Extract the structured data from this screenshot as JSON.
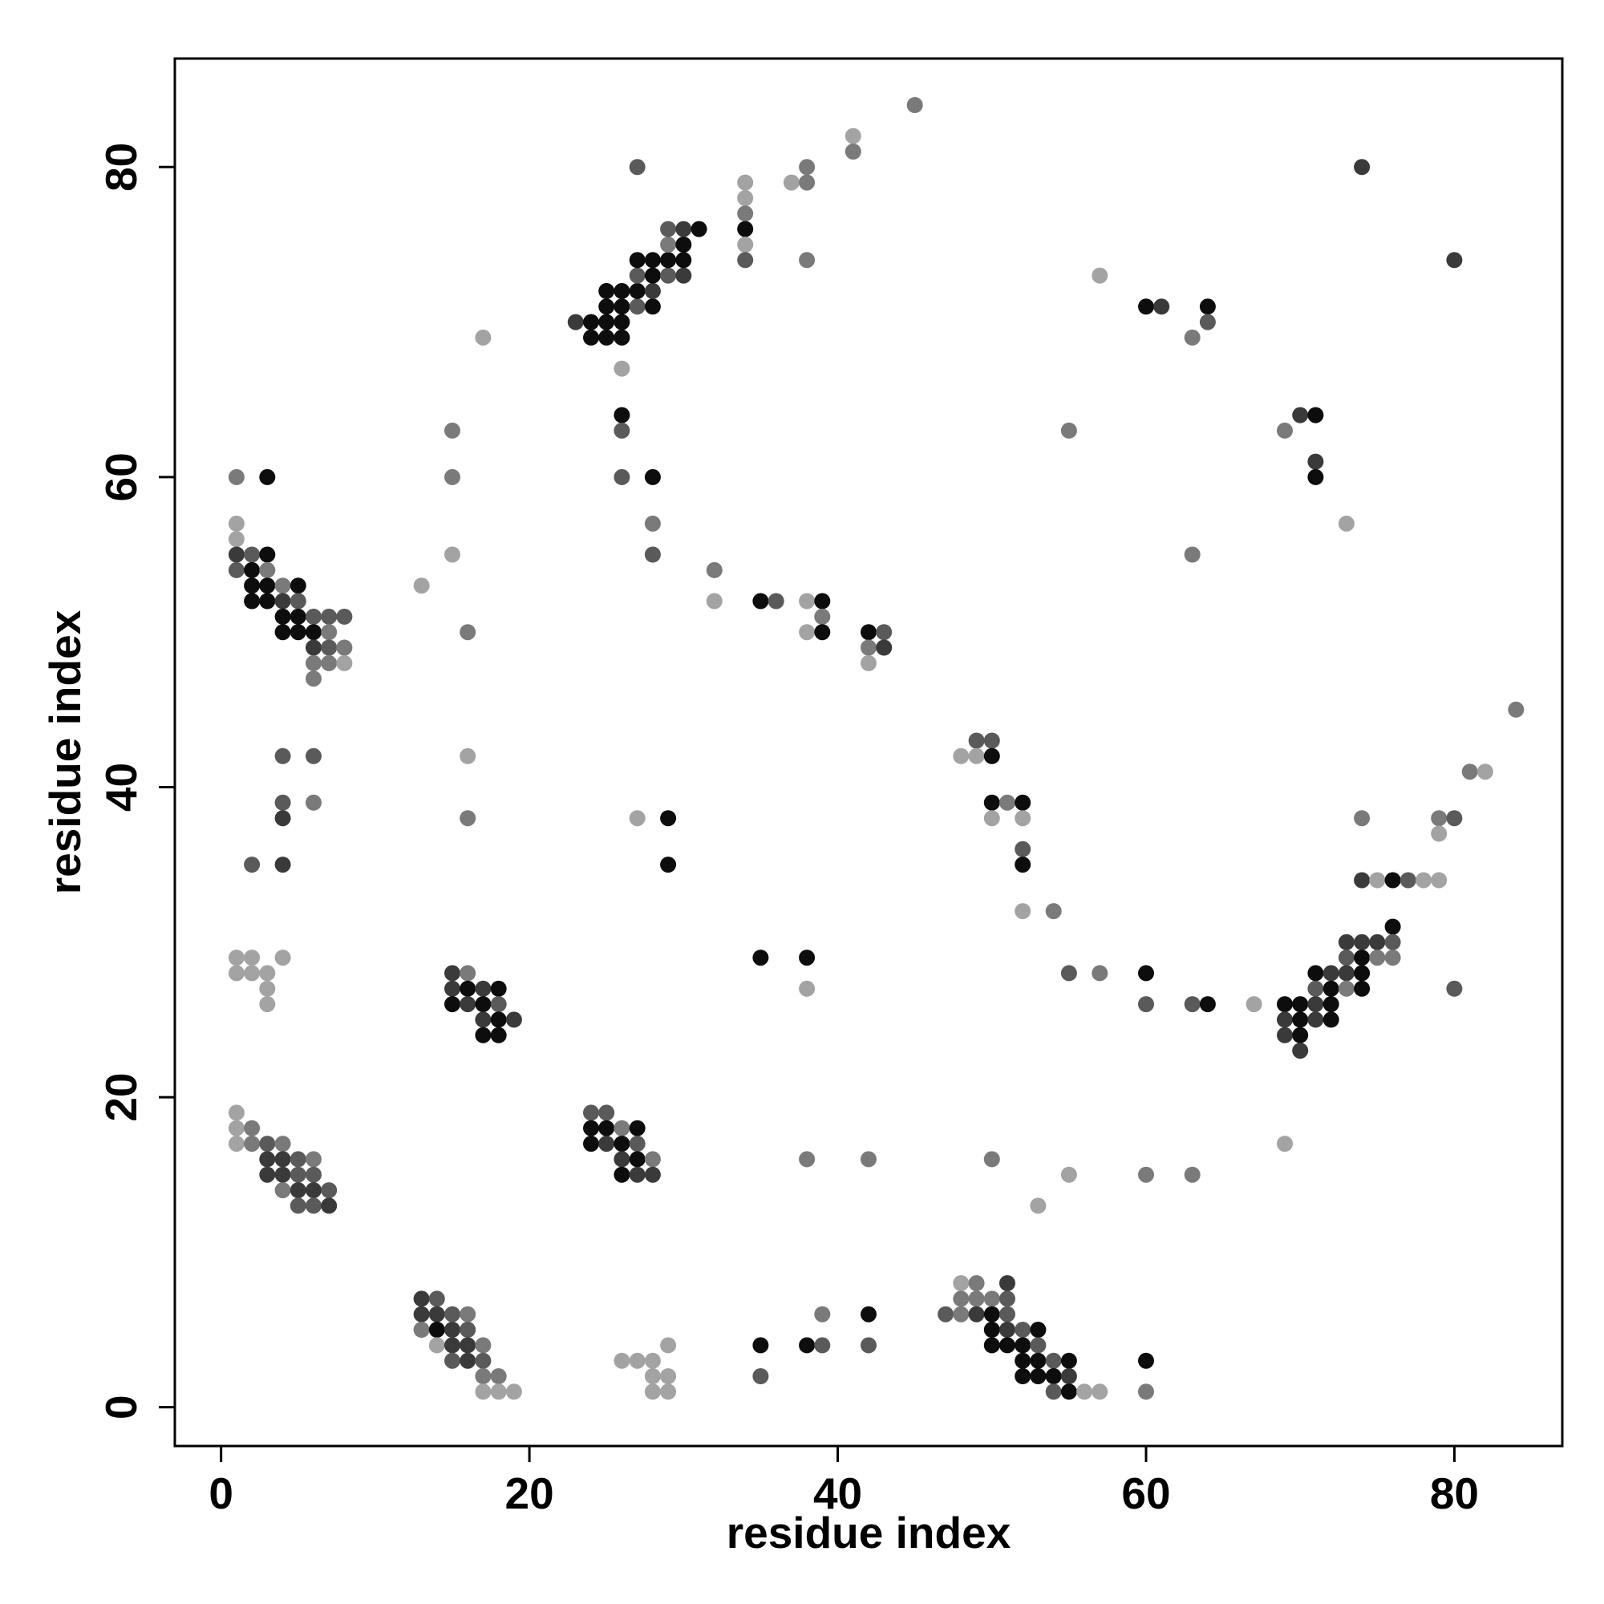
{
  "chart_data": {
    "type": "scatter",
    "title": "",
    "xlabel": "residue index",
    "ylabel": "residue index",
    "xlim": [
      -3,
      87
    ],
    "ylim": [
      -2.5,
      87
    ],
    "xticks": [
      0,
      20,
      40,
      60,
      80
    ],
    "yticks": [
      0,
      20,
      40,
      60,
      80
    ],
    "grid": false,
    "legend": "none",
    "color_levels": {
      "1": "#0d0d0d",
      "2": "#3a3a3a",
      "3": "#5a5a5a",
      "4": "#7a7a7a",
      "5": "#a3a3a3"
    },
    "points": [
      [
        1,
        60,
        4
      ],
      [
        3,
        60,
        1
      ],
      [
        1,
        57,
        5
      ],
      [
        1,
        56,
        5
      ],
      [
        1,
        55,
        2
      ],
      [
        2,
        55,
        3
      ],
      [
        3,
        55,
        1
      ],
      [
        1,
        54,
        3
      ],
      [
        2,
        54,
        1
      ],
      [
        3,
        54,
        4
      ],
      [
        2,
        53,
        1
      ],
      [
        3,
        53,
        1
      ],
      [
        4,
        53,
        4
      ],
      [
        5,
        53,
        1
      ],
      [
        2,
        52,
        1
      ],
      [
        3,
        52,
        1
      ],
      [
        4,
        52,
        2
      ],
      [
        5,
        52,
        3
      ],
      [
        4,
        51,
        1
      ],
      [
        5,
        51,
        1
      ],
      [
        6,
        51,
        3
      ],
      [
        7,
        51,
        3
      ],
      [
        8,
        51,
        3
      ],
      [
        4,
        50,
        1
      ],
      [
        5,
        50,
        1
      ],
      [
        6,
        50,
        1
      ],
      [
        7,
        50,
        4
      ],
      [
        6,
        49,
        2
      ],
      [
        7,
        49,
        3
      ],
      [
        8,
        49,
        4
      ],
      [
        6,
        48,
        4
      ],
      [
        7,
        48,
        4
      ],
      [
        8,
        48,
        5
      ],
      [
        6,
        47,
        4
      ],
      [
        4,
        42,
        3
      ],
      [
        6,
        42,
        3
      ],
      [
        4,
        39,
        3
      ],
      [
        6,
        39,
        4
      ],
      [
        4,
        38,
        2
      ],
      [
        2,
        35,
        3
      ],
      [
        4,
        35,
        2
      ],
      [
        1,
        29,
        5
      ],
      [
        2,
        29,
        5
      ],
      [
        4,
        29,
        5
      ],
      [
        1,
        28,
        5
      ],
      [
        2,
        28,
        5
      ],
      [
        3,
        28,
        5
      ],
      [
        3,
        27,
        5
      ],
      [
        3,
        26,
        5
      ],
      [
        1,
        19,
        5
      ],
      [
        1,
        18,
        5
      ],
      [
        2,
        18,
        4
      ],
      [
        1,
        17,
        5
      ],
      [
        2,
        17,
        4
      ],
      [
        3,
        17,
        3
      ],
      [
        4,
        17,
        4
      ],
      [
        3,
        16,
        2
      ],
      [
        4,
        16,
        2
      ],
      [
        5,
        16,
        3
      ],
      [
        6,
        16,
        4
      ],
      [
        3,
        15,
        2
      ],
      [
        4,
        15,
        2
      ],
      [
        5,
        15,
        3
      ],
      [
        6,
        15,
        3
      ],
      [
        4,
        14,
        4
      ],
      [
        5,
        14,
        2
      ],
      [
        6,
        14,
        2
      ],
      [
        7,
        14,
        3
      ],
      [
        5,
        13,
        3
      ],
      [
        6,
        13,
        3
      ],
      [
        7,
        13,
        2
      ],
      [
        15,
        63,
        4
      ],
      [
        15,
        60,
        4
      ],
      [
        15,
        55,
        5
      ],
      [
        16,
        50,
        4
      ],
      [
        13,
        53,
        5
      ],
      [
        16,
        42,
        5
      ],
      [
        16,
        38,
        4
      ],
      [
        17,
        69,
        5
      ],
      [
        15,
        28,
        2
      ],
      [
        16,
        28,
        4
      ],
      [
        15,
        27,
        2
      ],
      [
        16,
        27,
        1
      ],
      [
        17,
        27,
        2
      ],
      [
        18,
        27,
        1
      ],
      [
        15,
        26,
        1
      ],
      [
        16,
        26,
        2
      ],
      [
        17,
        26,
        1
      ],
      [
        18,
        26,
        3
      ],
      [
        17,
        25,
        2
      ],
      [
        18,
        25,
        1
      ],
      [
        19,
        25,
        2
      ],
      [
        17,
        24,
        1
      ],
      [
        18,
        24,
        1
      ],
      [
        13,
        7,
        2
      ],
      [
        14,
        7,
        3
      ],
      [
        13,
        6,
        2
      ],
      [
        14,
        6,
        2
      ],
      [
        15,
        6,
        3
      ],
      [
        16,
        6,
        4
      ],
      [
        13,
        5,
        4
      ],
      [
        14,
        5,
        1
      ],
      [
        15,
        5,
        2
      ],
      [
        16,
        5,
        3
      ],
      [
        14,
        4,
        5
      ],
      [
        15,
        4,
        2
      ],
      [
        16,
        4,
        2
      ],
      [
        17,
        4,
        4
      ],
      [
        15,
        3,
        3
      ],
      [
        16,
        3,
        2
      ],
      [
        17,
        3,
        3
      ],
      [
        17,
        2,
        4
      ],
      [
        18,
        2,
        4
      ],
      [
        17,
        1,
        5
      ],
      [
        18,
        1,
        5
      ],
      [
        19,
        1,
        5
      ],
      [
        23,
        70,
        2
      ],
      [
        24,
        70,
        1
      ],
      [
        25,
        70,
        1
      ],
      [
        26,
        70,
        1
      ],
      [
        24,
        69,
        1
      ],
      [
        25,
        69,
        1
      ],
      [
        26,
        69,
        1
      ],
      [
        25,
        71,
        1
      ],
      [
        26,
        71,
        1
      ],
      [
        27,
        71,
        3
      ],
      [
        28,
        71,
        1
      ],
      [
        25,
        72,
        1
      ],
      [
        26,
        72,
        1
      ],
      [
        27,
        72,
        1
      ],
      [
        28,
        72,
        2
      ],
      [
        27,
        73,
        3
      ],
      [
        28,
        73,
        1
      ],
      [
        29,
        73,
        3
      ],
      [
        30,
        73,
        2
      ],
      [
        27,
        74,
        1
      ],
      [
        28,
        74,
        1
      ],
      [
        29,
        74,
        1
      ],
      [
        30,
        74,
        1
      ],
      [
        29,
        75,
        4
      ],
      [
        30,
        75,
        1
      ],
      [
        29,
        76,
        3
      ],
      [
        30,
        76,
        2
      ],
      [
        31,
        76,
        1
      ],
      [
        26,
        67,
        5
      ],
      [
        26,
        64,
        1
      ],
      [
        26,
        63,
        3
      ],
      [
        26,
        60,
        3
      ],
      [
        28,
        60,
        1
      ],
      [
        28,
        57,
        4
      ],
      [
        28,
        55,
        3
      ],
      [
        27,
        80,
        3
      ],
      [
        32,
        54,
        4
      ],
      [
        32,
        52,
        5
      ],
      [
        29,
        38,
        1
      ],
      [
        27,
        38,
        5
      ],
      [
        29,
        35,
        1
      ],
      [
        24,
        19,
        3
      ],
      [
        25,
        19,
        3
      ],
      [
        24,
        18,
        1
      ],
      [
        25,
        18,
        1
      ],
      [
        26,
        18,
        4
      ],
      [
        27,
        18,
        1
      ],
      [
        24,
        17,
        1
      ],
      [
        25,
        17,
        2
      ],
      [
        26,
        17,
        1
      ],
      [
        27,
        17,
        3
      ],
      [
        26,
        16,
        2
      ],
      [
        27,
        16,
        1
      ],
      [
        28,
        16,
        4
      ],
      [
        26,
        15,
        1
      ],
      [
        27,
        15,
        2
      ],
      [
        28,
        15,
        2
      ],
      [
        26,
        3,
        5
      ],
      [
        27,
        3,
        5
      ],
      [
        28,
        3,
        5
      ],
      [
        29,
        4,
        5
      ],
      [
        28,
        2,
        5
      ],
      [
        29,
        2,
        5
      ],
      [
        28,
        1,
        5
      ],
      [
        29,
        1,
        5
      ],
      [
        34,
        79,
        5
      ],
      [
        34,
        78,
        5
      ],
      [
        34,
        77,
        4
      ],
      [
        34,
        76,
        1
      ],
      [
        34,
        75,
        5
      ],
      [
        34,
        74,
        3
      ],
      [
        37,
        79,
        5
      ],
      [
        38,
        79,
        4
      ],
      [
        38,
        80,
        4
      ],
      [
        38,
        74,
        4
      ],
      [
        41,
        82,
        5
      ],
      [
        41,
        81,
        4
      ],
      [
        45,
        84,
        4
      ],
      [
        35,
        52,
        1
      ],
      [
        36,
        52,
        3
      ],
      [
        38,
        52,
        5
      ],
      [
        39,
        52,
        1
      ],
      [
        39,
        51,
        4
      ],
      [
        38,
        50,
        5
      ],
      [
        39,
        50,
        1
      ],
      [
        42,
        50,
        1
      ],
      [
        43,
        50,
        3
      ],
      [
        42,
        49,
        4
      ],
      [
        43,
        49,
        2
      ],
      [
        42,
        48,
        5
      ],
      [
        35,
        29,
        1
      ],
      [
        38,
        29,
        1
      ],
      [
        38,
        27,
        5
      ],
      [
        38,
        16,
        4
      ],
      [
        42,
        16,
        4
      ],
      [
        35,
        4,
        1
      ],
      [
        38,
        4,
        1
      ],
      [
        39,
        4,
        3
      ],
      [
        42,
        4,
        3
      ],
      [
        35,
        2,
        3
      ],
      [
        39,
        6,
        4
      ],
      [
        42,
        6,
        1
      ],
      [
        49,
        43,
        3
      ],
      [
        50,
        43,
        3
      ],
      [
        48,
        42,
        5
      ],
      [
        49,
        42,
        5
      ],
      [
        50,
        42,
        1
      ],
      [
        50,
        39,
        1
      ],
      [
        51,
        39,
        4
      ],
      [
        52,
        39,
        1
      ],
      [
        50,
        38,
        5
      ],
      [
        52,
        38,
        5
      ],
      [
        52,
        36,
        3
      ],
      [
        52,
        35,
        1
      ],
      [
        52,
        32,
        5
      ],
      [
        54,
        32,
        4
      ],
      [
        55,
        28,
        3
      ],
      [
        57,
        28,
        4
      ],
      [
        60,
        28,
        1
      ],
      [
        60,
        26,
        3
      ],
      [
        63,
        26,
        3
      ],
      [
        64,
        26,
        1
      ],
      [
        67,
        26,
        5
      ],
      [
        55,
        63,
        4
      ],
      [
        57,
        73,
        5
      ],
      [
        60,
        71,
        1
      ],
      [
        61,
        71,
        2
      ],
      [
        64,
        71,
        1
      ],
      [
        64,
        70,
        3
      ],
      [
        63,
        69,
        4
      ],
      [
        63,
        55,
        4
      ],
      [
        50,
        16,
        4
      ],
      [
        53,
        13,
        5
      ],
      [
        55,
        15,
        5
      ],
      [
        60,
        15,
        4
      ],
      [
        63,
        15,
        4
      ],
      [
        48,
        8,
        5
      ],
      [
        49,
        8,
        4
      ],
      [
        51,
        8,
        2
      ],
      [
        48,
        7,
        4
      ],
      [
        49,
        7,
        4
      ],
      [
        50,
        7,
        4
      ],
      [
        51,
        7,
        3
      ],
      [
        47,
        6,
        3
      ],
      [
        48,
        6,
        4
      ],
      [
        49,
        6,
        2
      ],
      [
        50,
        6,
        1
      ],
      [
        51,
        6,
        3
      ],
      [
        50,
        5,
        1
      ],
      [
        51,
        5,
        2
      ],
      [
        52,
        5,
        3
      ],
      [
        53,
        5,
        1
      ],
      [
        50,
        4,
        1
      ],
      [
        51,
        4,
        1
      ],
      [
        52,
        4,
        1
      ],
      [
        53,
        4,
        3
      ],
      [
        52,
        3,
        1
      ],
      [
        53,
        3,
        1
      ],
      [
        54,
        3,
        3
      ],
      [
        55,
        3,
        1
      ],
      [
        52,
        2,
        1
      ],
      [
        53,
        2,
        1
      ],
      [
        54,
        2,
        1
      ],
      [
        55,
        2,
        2
      ],
      [
        54,
        1,
        3
      ],
      [
        55,
        1,
        1
      ],
      [
        56,
        1,
        5
      ],
      [
        57,
        1,
        5
      ],
      [
        60,
        3,
        1
      ],
      [
        60,
        1,
        4
      ],
      [
        69,
        63,
        4
      ],
      [
        70,
        64,
        2
      ],
      [
        71,
        64,
        1
      ],
      [
        71,
        61,
        2
      ],
      [
        71,
        60,
        1
      ],
      [
        73,
        57,
        5
      ],
      [
        74,
        80,
        2
      ],
      [
        80,
        74,
        2
      ],
      [
        84,
        45,
        4
      ],
      [
        81,
        41,
        4
      ],
      [
        82,
        41,
        5
      ],
      [
        74,
        38,
        4
      ],
      [
        79,
        38,
        4
      ],
      [
        80,
        38,
        3
      ],
      [
        79,
        37,
        5
      ],
      [
        74,
        34,
        2
      ],
      [
        75,
        34,
        5
      ],
      [
        76,
        34,
        1
      ],
      [
        77,
        34,
        3
      ],
      [
        78,
        34,
        5
      ],
      [
        79,
        34,
        5
      ],
      [
        76,
        31,
        1
      ],
      [
        73,
        30,
        2
      ],
      [
        74,
        30,
        2
      ],
      [
        75,
        30,
        2
      ],
      [
        76,
        30,
        3
      ],
      [
        73,
        29,
        3
      ],
      [
        74,
        29,
        1
      ],
      [
        75,
        29,
        4
      ],
      [
        76,
        29,
        4
      ],
      [
        71,
        28,
        1
      ],
      [
        72,
        28,
        2
      ],
      [
        73,
        28,
        2
      ],
      [
        74,
        28,
        1
      ],
      [
        71,
        27,
        3
      ],
      [
        72,
        27,
        1
      ],
      [
        73,
        27,
        4
      ],
      [
        74,
        27,
        1
      ],
      [
        69,
        26,
        1
      ],
      [
        70,
        26,
        1
      ],
      [
        71,
        26,
        2
      ],
      [
        72,
        26,
        1
      ],
      [
        69,
        25,
        2
      ],
      [
        70,
        25,
        1
      ],
      [
        71,
        25,
        2
      ],
      [
        72,
        25,
        1
      ],
      [
        69,
        24,
        2
      ],
      [
        70,
        24,
        1
      ],
      [
        70,
        23,
        2
      ],
      [
        69,
        17,
        5
      ],
      [
        80,
        27,
        3
      ]
    ]
  }
}
